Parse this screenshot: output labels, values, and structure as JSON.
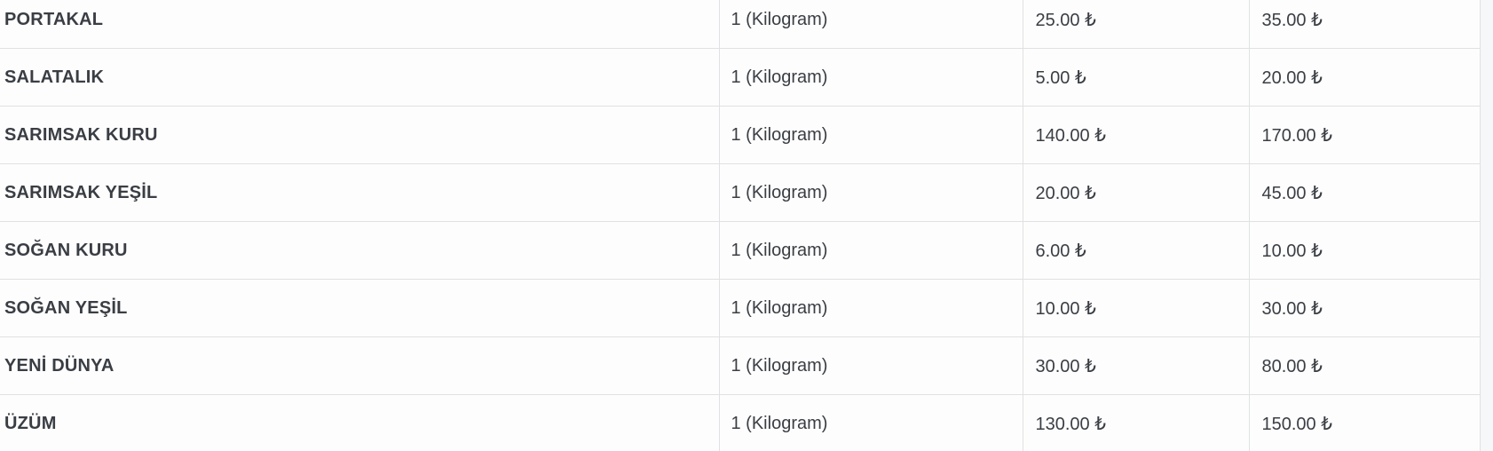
{
  "page": {
    "background_color": "#fefefe",
    "right_gutter_color": "#f5f7f8"
  },
  "colors": {
    "product_name_text": "#2d3139",
    "body_text": "#3a3e44",
    "grid_border": "#e0e1e2",
    "table_bottom_border": "#c7cacd"
  },
  "table": {
    "currency_symbol": "₺",
    "unit_label": "1 (Kilogram)",
    "rows": [
      {
        "name": "PORTAKAL",
        "unit": "1 (Kilogram)",
        "min_price": "25.00 ₺",
        "max_price": "35.00 ₺"
      },
      {
        "name": "SALATALIK",
        "unit": "1 (Kilogram)",
        "min_price": "5.00 ₺",
        "max_price": "20.00 ₺"
      },
      {
        "name": "SARIMSAK KURU",
        "unit": "1 (Kilogram)",
        "min_price": "140.00 ₺",
        "max_price": "170.00 ₺"
      },
      {
        "name": "SARIMSAK YEŞİL",
        "unit": "1 (Kilogram)",
        "min_price": "20.00 ₺",
        "max_price": "45.00 ₺"
      },
      {
        "name": "SOĞAN KURU",
        "unit": "1 (Kilogram)",
        "min_price": "6.00 ₺",
        "max_price": "10.00 ₺"
      },
      {
        "name": "SOĞAN YEŞİL",
        "unit": "1 (Kilogram)",
        "min_price": "10.00 ₺",
        "max_price": "30.00 ₺"
      },
      {
        "name": "YENİ DÜNYA",
        "unit": "1 (Kilogram)",
        "min_price": "30.00 ₺",
        "max_price": "80.00 ₺"
      },
      {
        "name": "ÜZÜM",
        "unit": "1 (Kilogram)",
        "min_price": "130.00 ₺",
        "max_price": "150.00 ₺"
      }
    ]
  }
}
